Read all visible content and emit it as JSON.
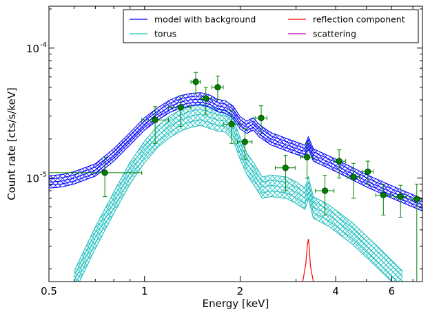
{
  "chart_data": {
    "type": "scatter",
    "xlabel": "Energy [keV]",
    "ylabel": "Count rate [cts/s/keV]",
    "xscale": "log",
    "yscale": "log",
    "xlim": [
      0.5,
      7.5
    ],
    "ylim": [
      1.6e-06,
      0.00021
    ],
    "grid": false,
    "legend_position": "top-right",
    "x_ticks": [
      {
        "value": 0.5,
        "label": "0.5"
      },
      {
        "value": 1,
        "label": "1"
      },
      {
        "value": 2,
        "label": "2"
      },
      {
        "value": 4,
        "label": "4"
      },
      {
        "value": 6,
        "label": "6"
      }
    ],
    "y_ticks": [
      {
        "value": 1e-05,
        "base": "10",
        "exp": "-5"
      },
      {
        "value": 0.0001,
        "base": "10",
        "exp": "-4"
      }
    ],
    "legend": [
      {
        "label": "model with background",
        "color": "#0000ff"
      },
      {
        "label": "reflection component",
        "color": "#ff0000"
      },
      {
        "label": "torus",
        "color": "#1fbfbf"
      },
      {
        "label": "scattering",
        "color": "#bf00bf"
      }
    ],
    "data_points": [
      {
        "x": 0.75,
        "xlo": 0.5,
        "xhi": 0.98,
        "y": 1.1e-05,
        "ylo": 7.2e-06,
        "yhi": 1.45e-05
      },
      {
        "x": 1.08,
        "xlo": 0.98,
        "xhi": 1.19,
        "y": 2.8e-05,
        "ylo": 1.85e-05,
        "yhi": 3.55e-05
      },
      {
        "x": 1.3,
        "xlo": 1.19,
        "xhi": 1.4,
        "y": 3.5e-05,
        "ylo": 2.5e-05,
        "yhi": 4.3e-05
      },
      {
        "x": 1.45,
        "xlo": 1.4,
        "xhi": 1.5,
        "y": 5.5e-05,
        "ylo": 4.5e-05,
        "yhi": 6.5e-05
      },
      {
        "x": 1.56,
        "xlo": 1.5,
        "xhi": 1.63,
        "y": 4.1e-05,
        "ylo": 3.1e-05,
        "yhi": 5e-05
      },
      {
        "x": 1.7,
        "xlo": 1.63,
        "xhi": 1.77,
        "y": 5e-05,
        "ylo": 4e-05,
        "yhi": 6.1e-05
      },
      {
        "x": 1.88,
        "xlo": 1.77,
        "xhi": 2.0,
        "y": 2.6e-05,
        "ylo": 1.85e-05,
        "yhi": 3.3e-05
      },
      {
        "x": 2.07,
        "xlo": 1.96,
        "xhi": 2.18,
        "y": 1.9e-05,
        "ylo": 1.4e-05,
        "yhi": 2.4e-05
      },
      {
        "x": 2.33,
        "xlo": 2.23,
        "xhi": 2.43,
        "y": 2.9e-05,
        "ylo": 2.2e-05,
        "yhi": 3.6e-05
      },
      {
        "x": 2.78,
        "xlo": 2.58,
        "xhi": 2.98,
        "y": 1.2e-05,
        "ylo": 8e-06,
        "yhi": 1.5e-05
      },
      {
        "x": 3.25,
        "xlo": 3.1,
        "xhi": 3.4,
        "y": 1.45e-05,
        "ylo": 1e-05,
        "yhi": 1.85e-05
      },
      {
        "x": 3.7,
        "xlo": 3.45,
        "xhi": 3.95,
        "y": 8e-06,
        "ylo": 5.2e-06,
        "yhi": 1.05e-05
      },
      {
        "x": 4.1,
        "xlo": 3.95,
        "xhi": 4.3,
        "y": 1.35e-05,
        "ylo": 1e-05,
        "yhi": 1.65e-05
      },
      {
        "x": 4.55,
        "xlo": 4.35,
        "xhi": 4.75,
        "y": 1.02e-05,
        "ylo": 7e-06,
        "yhi": 1.3e-05
      },
      {
        "x": 5.05,
        "xlo": 4.85,
        "xhi": 5.25,
        "y": 1.12e-05,
        "ylo": 9e-06,
        "yhi": 1.35e-05
      },
      {
        "x": 5.65,
        "xlo": 5.35,
        "xhi": 5.95,
        "y": 7.4e-06,
        "ylo": 5.2e-06,
        "yhi": 9e-06
      },
      {
        "x": 6.4,
        "xlo": 6.1,
        "xhi": 6.7,
        "y": 7.2e-06,
        "ylo": 5e-06,
        "yhi": 8.8e-06
      },
      {
        "x": 7.2,
        "xlo": 6.9,
        "xhi": 7.5,
        "y": 6.9e-06,
        "ylo": 1.6e-06,
        "yhi": 9e-06
      }
    ],
    "series": [
      {
        "name": "model with background",
        "color": "#0000ff",
        "points": [
          [
            0.5,
            9.3e-06
          ],
          [
            0.55,
            9.5e-06
          ],
          [
            0.6,
            1e-05
          ],
          [
            0.7,
            1.15e-05
          ],
          [
            0.8,
            1.5e-05
          ],
          [
            0.9,
            2e-05
          ],
          [
            1.0,
            2.6e-05
          ],
          [
            1.1,
            3.1e-05
          ],
          [
            1.2,
            3.55e-05
          ],
          [
            1.3,
            3.85e-05
          ],
          [
            1.4,
            4e-05
          ],
          [
            1.5,
            4.05e-05
          ],
          [
            1.6,
            3.9e-05
          ],
          [
            1.7,
            3.6e-05
          ],
          [
            1.8,
            3.5e-05
          ],
          [
            1.9,
            3.2e-05
          ],
          [
            2.0,
            2.65e-05
          ],
          [
            2.1,
            2.45e-05
          ],
          [
            2.2,
            2.6e-05
          ],
          [
            2.3,
            2.3e-05
          ],
          [
            2.5,
            2e-05
          ],
          [
            2.8,
            1.8e-05
          ],
          [
            3.2,
            1.6e-05
          ],
          [
            3.28,
            1.85e-05
          ],
          [
            3.4,
            1.5e-05
          ],
          [
            4.0,
            1.25e-05
          ],
          [
            5.0,
            9.5e-06
          ],
          [
            6.0,
            7.8e-06
          ],
          [
            7.5,
            6.2e-06
          ]
        ]
      },
      {
        "name": "torus",
        "color": "#1fbfbf",
        "points": [
          [
            0.6,
            1.6e-06
          ],
          [
            0.7,
            3.5e-06
          ],
          [
            0.8,
            6.5e-06
          ],
          [
            0.9,
            1.1e-05
          ],
          [
            1.0,
            1.6e-05
          ],
          [
            1.1,
            2.1e-05
          ],
          [
            1.2,
            2.5e-05
          ],
          [
            1.3,
            2.8e-05
          ],
          [
            1.4,
            3e-05
          ],
          [
            1.5,
            3.1e-05
          ],
          [
            1.6,
            2.95e-05
          ],
          [
            1.7,
            2.8e-05
          ],
          [
            1.8,
            2.75e-05
          ],
          [
            1.9,
            2.4e-05
          ],
          [
            2.0,
            1.7e-05
          ],
          [
            2.1,
            1.3e-05
          ],
          [
            2.2,
            1.1e-05
          ],
          [
            2.35,
            8.5e-06
          ],
          [
            2.5,
            8.8e-06
          ],
          [
            2.8,
            8.5e-06
          ],
          [
            3.0,
            7.8e-06
          ],
          [
            3.2,
            7e-06
          ],
          [
            3.28,
            8.5e-06
          ],
          [
            3.4,
            6e-06
          ],
          [
            3.8,
            5.2e-06
          ],
          [
            4.5,
            3.8e-06
          ],
          [
            5.5,
            2.4e-06
          ],
          [
            6.5,
            1.6e-06
          ]
        ]
      },
      {
        "name": "reflection component",
        "color": "#ff0000",
        "points": [
          [
            3.15,
            1.6e-06
          ],
          [
            3.22,
            2.2e-06
          ],
          [
            3.26,
            3.1e-06
          ],
          [
            3.28,
            3.4e-06
          ],
          [
            3.3,
            3e-06
          ],
          [
            3.33,
            2.1e-06
          ],
          [
            3.4,
            1.6e-06
          ]
        ]
      },
      {
        "name": "scattering",
        "color": "#bf00bf",
        "points": []
      }
    ]
  }
}
